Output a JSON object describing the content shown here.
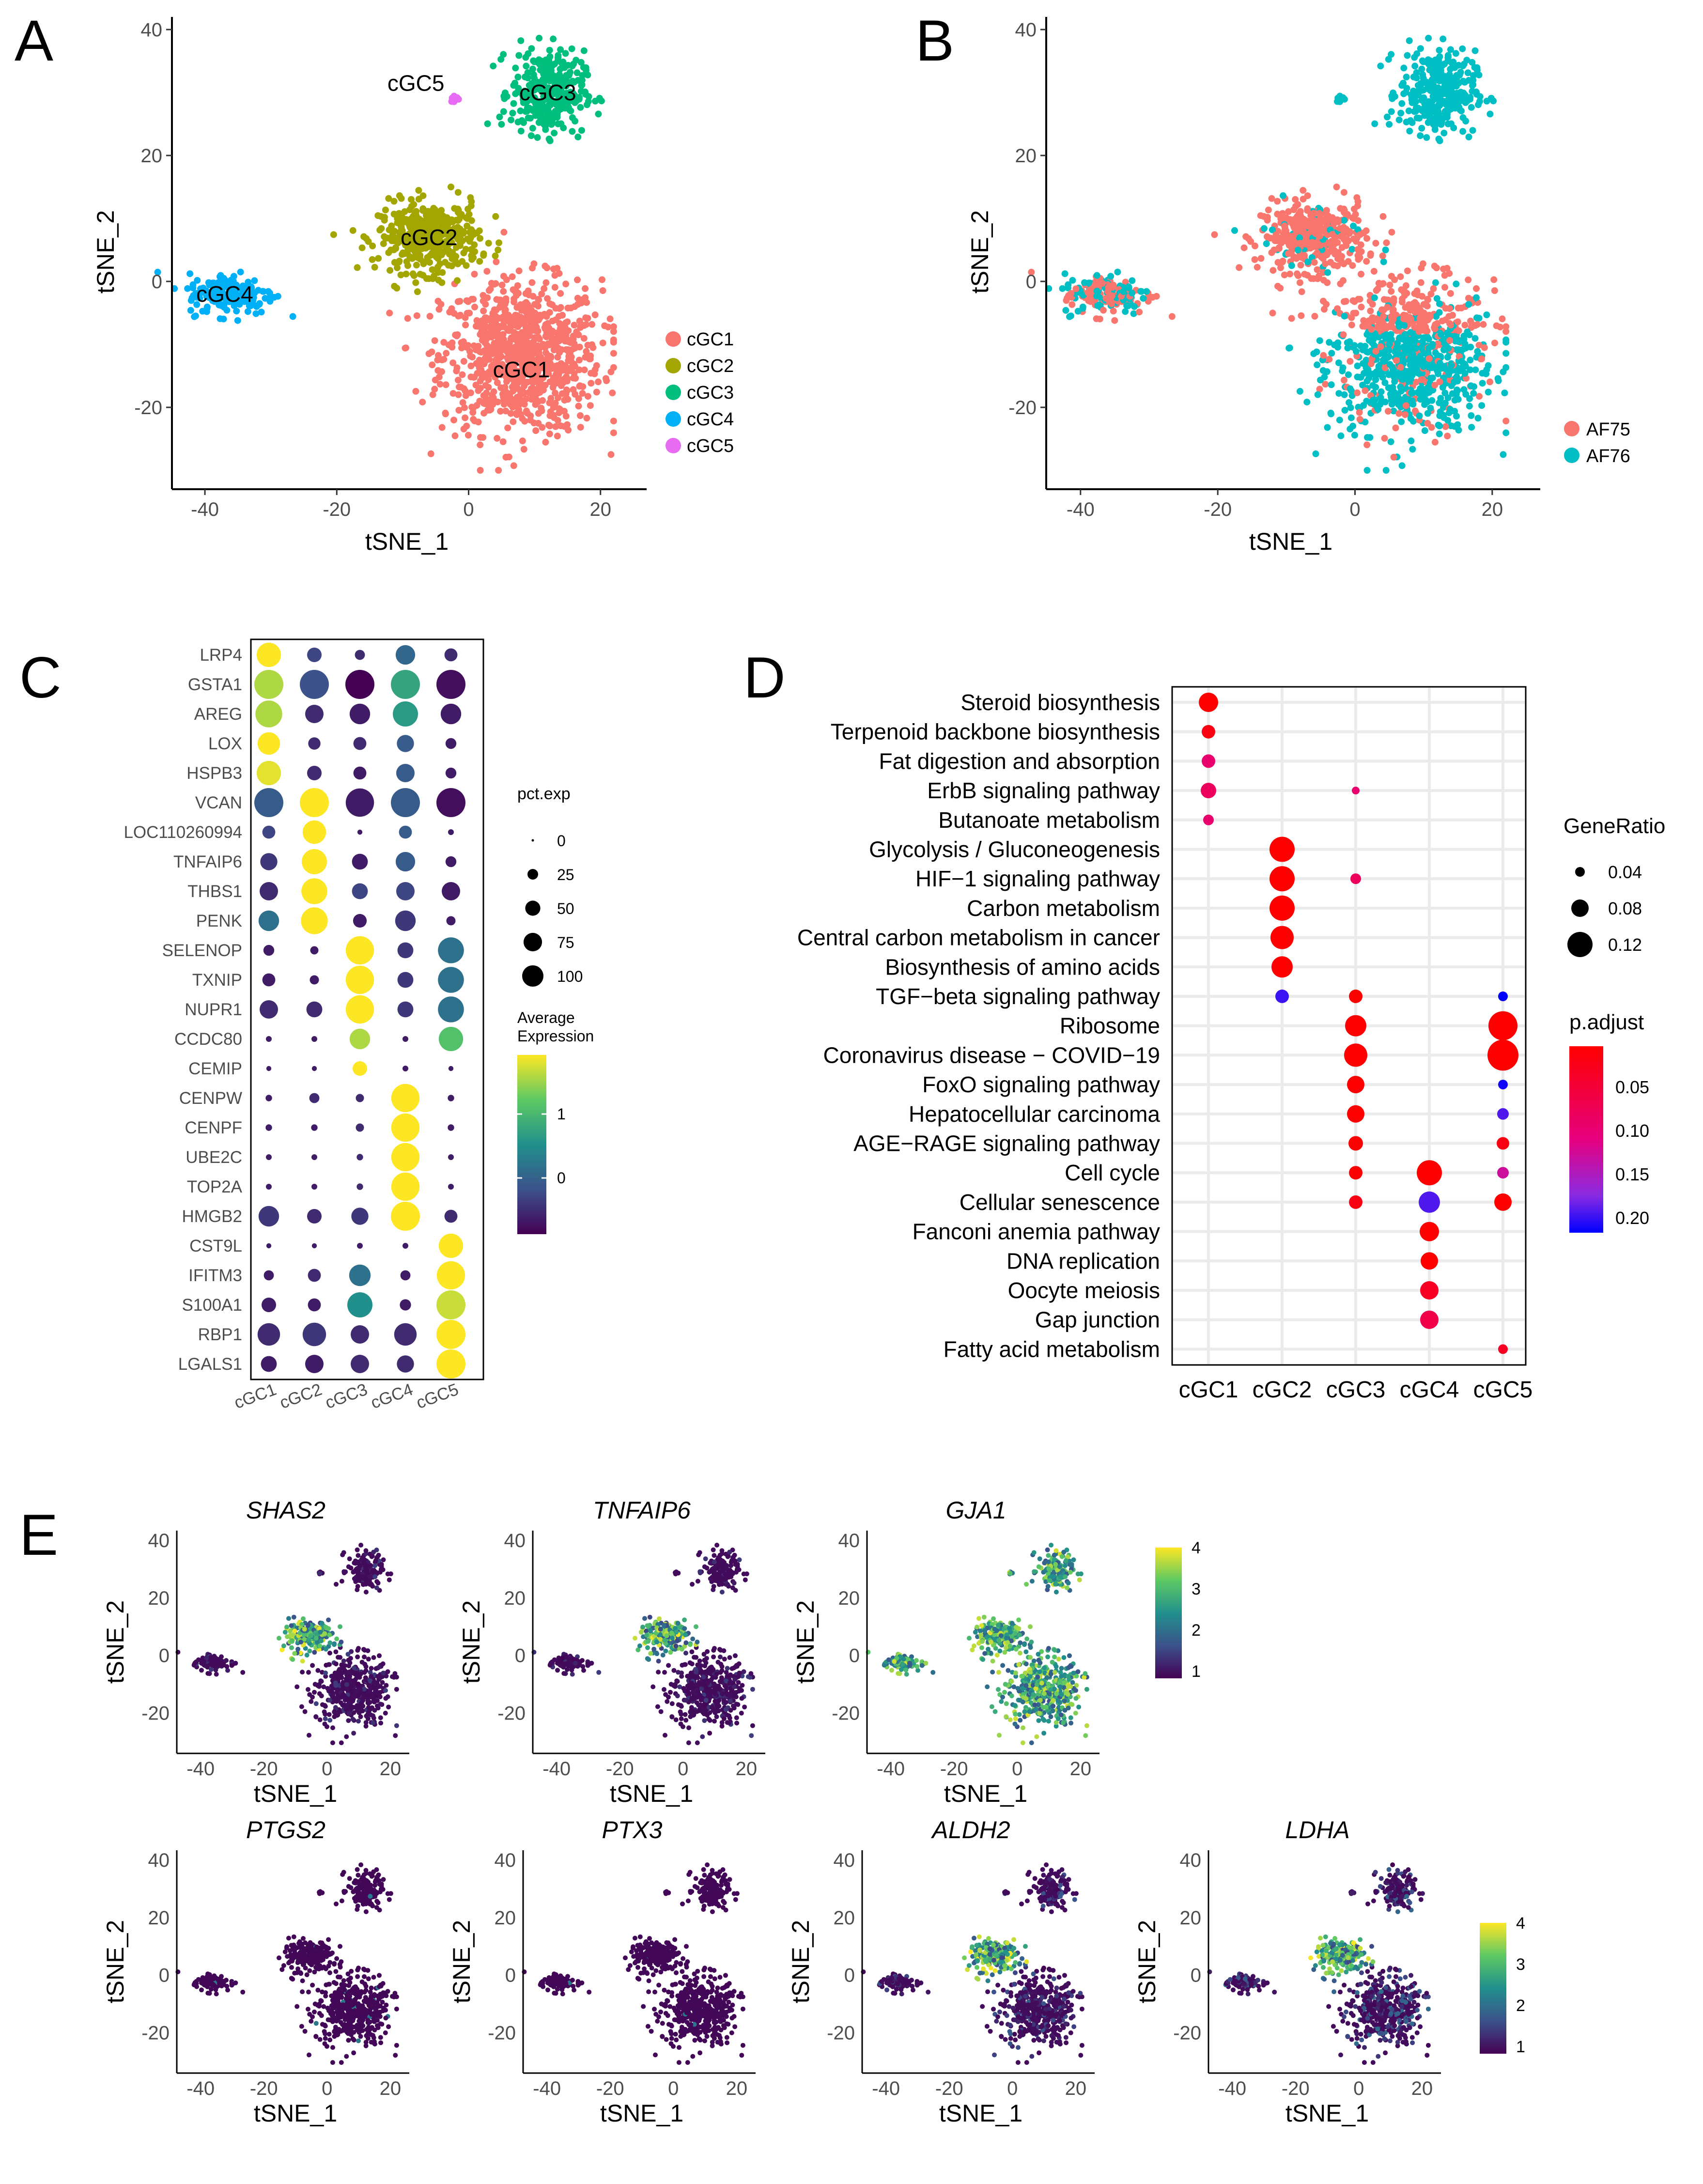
{
  "panels": {
    "A": {
      "letter": "A",
      "xlabel": "tSNE_1",
      "ylabel": "tSNE_2",
      "xlim": [
        -45,
        27
      ],
      "ylim": [
        -33,
        42
      ],
      "xticks": [
        -40,
        -20,
        0,
        20
      ],
      "yticks": [
        -20,
        0,
        20,
        40
      ],
      "legend_title": "",
      "legend": [
        {
          "name": "cGC1",
          "color": "#F8766D"
        },
        {
          "name": "cGC2",
          "color": "#A3A500"
        },
        {
          "name": "cGC3",
          "color": "#00BF7D"
        },
        {
          "name": "cGC4",
          "color": "#00B0F6"
        },
        {
          "name": "cGC5",
          "color": "#E76BF3"
        }
      ],
      "cluster_labels": [
        {
          "text": "cGC1",
          "x": 8,
          "y": -14
        },
        {
          "text": "cGC2",
          "x": -6,
          "y": 7
        },
        {
          "text": "cGC3",
          "x": 12,
          "y": 30
        },
        {
          "text": "cGC4",
          "x": -37,
          "y": -2
        },
        {
          "text": "cGC5",
          "x": -8,
          "y": 31.5
        }
      ]
    },
    "B": {
      "letter": "B",
      "xlabel": "tSNE_1",
      "ylabel": "tSNE_2",
      "xlim": [
        -45,
        27
      ],
      "ylim": [
        -33,
        42
      ],
      "xticks": [
        -40,
        -20,
        0,
        20
      ],
      "yticks": [
        -20,
        0,
        20,
        40
      ],
      "legend": [
        {
          "name": "AF75",
          "color": "#F8766D"
        },
        {
          "name": "AF76",
          "color": "#00BFC4"
        }
      ]
    },
    "C": {
      "letter": "C",
      "genes": [
        "LRP4",
        "GSTA1",
        "AREG",
        "LOX",
        "HSPB3",
        "VCAN",
        "LOC110260994",
        "TNFAIP6",
        "THBS1",
        "PENK",
        "SELENOP",
        "TXNIP",
        "NUPR1",
        "CCDC80",
        "CEMIP",
        "CENPW",
        "CENPF",
        "UBE2C",
        "TOP2A",
        "HMGB2",
        "CST9L",
        "IFITM3",
        "S100A1",
        "RBP1",
        "LGALS1"
      ],
      "clusters": [
        "cGC1",
        "cGC2",
        "cGC3",
        "cGC4",
        "cGC5"
      ],
      "pct_exp": [
        [
          70,
          25,
          12,
          45,
          20
        ],
        [
          100,
          100,
          100,
          100,
          100
        ],
        [
          85,
          40,
          50,
          75,
          50
        ],
        [
          60,
          18,
          20,
          35,
          14
        ],
        [
          70,
          25,
          20,
          40,
          14
        ],
        [
          100,
          100,
          95,
          100,
          100
        ],
        [
          20,
          65,
          3,
          20,
          4
        ],
        [
          35,
          75,
          30,
          45,
          14
        ],
        [
          40,
          80,
          30,
          40,
          40
        ],
        [
          50,
          85,
          22,
          50,
          10
        ],
        [
          14,
          8,
          95,
          30,
          80
        ],
        [
          20,
          10,
          95,
          30,
          80
        ],
        [
          40,
          30,
          95,
          30,
          80
        ],
        [
          4,
          4,
          50,
          4,
          70
        ],
        [
          3,
          3,
          25,
          4,
          3
        ],
        [
          5,
          12,
          8,
          95,
          5
        ],
        [
          5,
          5,
          8,
          95,
          5
        ],
        [
          4,
          4,
          5,
          95,
          4
        ],
        [
          4,
          4,
          5,
          95,
          4
        ],
        [
          50,
          25,
          35,
          100,
          20
        ],
        [
          3,
          3,
          4,
          4,
          70
        ],
        [
          12,
          20,
          55,
          12,
          95
        ],
        [
          25,
          20,
          75,
          15,
          100
        ],
        [
          60,
          65,
          40,
          60,
          100
        ],
        [
          30,
          40,
          40,
          35,
          100
        ]
      ],
      "avg_exp": [
        [
          1.6,
          -0.3,
          -0.5,
          0.0,
          -0.5
        ],
        [
          1.3,
          -0.2,
          -0.8,
          0.6,
          -0.7
        ],
        [
          1.3,
          -0.5,
          -0.6,
          0.5,
          -0.6
        ],
        [
          1.6,
          -0.5,
          -0.5,
          -0.1,
          -0.6
        ],
        [
          1.5,
          -0.5,
          -0.6,
          -0.1,
          -0.6
        ],
        [
          -0.1,
          1.6,
          -0.6,
          -0.1,
          -0.7
        ],
        [
          -0.3,
          1.6,
          -0.6,
          -0.1,
          -0.6
        ],
        [
          -0.4,
          1.6,
          -0.6,
          -0.1,
          -0.6
        ],
        [
          -0.5,
          1.6,
          -0.3,
          -0.3,
          -0.6
        ],
        [
          0.1,
          1.6,
          -0.6,
          -0.4,
          -0.6
        ],
        [
          -0.6,
          -0.6,
          1.6,
          -0.4,
          0.1
        ],
        [
          -0.6,
          -0.6,
          1.6,
          -0.4,
          0.1
        ],
        [
          -0.5,
          -0.5,
          1.6,
          -0.4,
          0.1
        ],
        [
          -0.6,
          -0.6,
          1.3,
          -0.6,
          0.9
        ],
        [
          -0.6,
          -0.6,
          1.6,
          -0.6,
          -0.6
        ],
        [
          -0.6,
          -0.5,
          -0.5,
          1.6,
          -0.6
        ],
        [
          -0.6,
          -0.6,
          -0.5,
          1.6,
          -0.6
        ],
        [
          -0.6,
          -0.6,
          -0.5,
          1.6,
          -0.6
        ],
        [
          -0.6,
          -0.6,
          -0.5,
          1.6,
          -0.6
        ],
        [
          -0.4,
          -0.5,
          -0.4,
          1.6,
          -0.5
        ],
        [
          -0.6,
          -0.6,
          -0.6,
          -0.6,
          1.6
        ],
        [
          -0.6,
          -0.5,
          0.1,
          -0.6,
          1.6
        ],
        [
          -0.6,
          -0.6,
          0.4,
          -0.6,
          1.4
        ],
        [
          -0.5,
          -0.4,
          -0.5,
          -0.5,
          1.6
        ],
        [
          -0.6,
          -0.6,
          -0.5,
          -0.5,
          1.6
        ]
      ],
      "size_legend_title": "pct.exp",
      "size_legend_values": [
        "0",
        "25",
        "50",
        "75",
        "100"
      ],
      "color_legend_title": [
        "Average",
        "Expression"
      ],
      "color_legend_ticks": [
        "1",
        "0"
      ]
    },
    "D": {
      "letter": "D",
      "terms": [
        "Steroid biosynthesis",
        "Terpenoid backbone biosynthesis",
        "Fat digestion and absorption",
        "ErbB signaling pathway",
        "Butanoate metabolism",
        "Glycolysis / Gluconeogenesis",
        "HIF−1 signaling pathway",
        "Carbon metabolism",
        "Central carbon metabolism in cancer",
        "Biosynthesis of amino acids",
        "TGF−beta signaling pathway",
        "Ribosome",
        "Coronavirus disease − COVID−19",
        "FoxO signaling pathway",
        "Hepatocellular carcinoma",
        "AGE−RAGE signaling pathway",
        "Cell cycle",
        "Cellular senescence",
        "Fanconi anemia pathway",
        "DNA replication",
        "Oocyte meiosis",
        "Gap junction",
        "Fatty acid metabolism"
      ],
      "clusters": [
        "cGC1",
        "cGC2",
        "cGC3",
        "cGC4",
        "cGC5"
      ],
      "points": [
        {
          "term": 0,
          "cluster": 0,
          "ratio": 0.09,
          "padj": 0.01
        },
        {
          "term": 1,
          "cluster": 0,
          "ratio": 0.06,
          "padj": 0.02
        },
        {
          "term": 2,
          "cluster": 0,
          "ratio": 0.06,
          "padj": 0.07
        },
        {
          "term": 3,
          "cluster": 0,
          "ratio": 0.07,
          "padj": 0.06
        },
        {
          "term": 4,
          "cluster": 0,
          "ratio": 0.045,
          "padj": 0.07
        },
        {
          "term": 3,
          "cluster": 2,
          "ratio": 0.03,
          "padj": 0.07
        },
        {
          "term": 5,
          "cluster": 1,
          "ratio": 0.12,
          "padj": 0.01
        },
        {
          "term": 6,
          "cluster": 1,
          "ratio": 0.12,
          "padj": 0.01
        },
        {
          "term": 6,
          "cluster": 2,
          "ratio": 0.045,
          "padj": 0.06
        },
        {
          "term": 7,
          "cluster": 1,
          "ratio": 0.12,
          "padj": 0.01
        },
        {
          "term": 8,
          "cluster": 1,
          "ratio": 0.11,
          "padj": 0.01
        },
        {
          "term": 9,
          "cluster": 1,
          "ratio": 0.1,
          "padj": 0.01
        },
        {
          "term": 10,
          "cluster": 1,
          "ratio": 0.06,
          "padj": 0.19
        },
        {
          "term": 10,
          "cluster": 2,
          "ratio": 0.06,
          "padj": 0.01
        },
        {
          "term": 10,
          "cluster": 4,
          "ratio": 0.04,
          "padj": 0.22
        },
        {
          "term": 11,
          "cluster": 2,
          "ratio": 0.1,
          "padj": 0.01
        },
        {
          "term": 11,
          "cluster": 4,
          "ratio": 0.14,
          "padj": 0.01
        },
        {
          "term": 12,
          "cluster": 2,
          "ratio": 0.11,
          "padj": 0.01
        },
        {
          "term": 12,
          "cluster": 4,
          "ratio": 0.15,
          "padj": 0.01
        },
        {
          "term": 13,
          "cluster": 2,
          "ratio": 0.08,
          "padj": 0.01
        },
        {
          "term": 13,
          "cluster": 4,
          "ratio": 0.04,
          "padj": 0.21
        },
        {
          "term": 14,
          "cluster": 2,
          "ratio": 0.08,
          "padj": 0.01
        },
        {
          "term": 14,
          "cluster": 4,
          "ratio": 0.05,
          "padj": 0.18
        },
        {
          "term": 15,
          "cluster": 2,
          "ratio": 0.065,
          "padj": 0.01
        },
        {
          "term": 15,
          "cluster": 4,
          "ratio": 0.055,
          "padj": 0.02
        },
        {
          "term": 16,
          "cluster": 2,
          "ratio": 0.06,
          "padj": 0.01
        },
        {
          "term": 16,
          "cluster": 3,
          "ratio": 0.12,
          "padj": 0.01
        },
        {
          "term": 16,
          "cluster": 4,
          "ratio": 0.05,
          "padj": 0.1
        },
        {
          "term": 17,
          "cluster": 2,
          "ratio": 0.06,
          "padj": 0.02
        },
        {
          "term": 17,
          "cluster": 3,
          "ratio": 0.1,
          "padj": 0.18
        },
        {
          "term": 17,
          "cluster": 4,
          "ratio": 0.08,
          "padj": 0.01
        },
        {
          "term": 18,
          "cluster": 3,
          "ratio": 0.09,
          "padj": 0.01
        },
        {
          "term": 19,
          "cluster": 3,
          "ratio": 0.08,
          "padj": 0.01
        },
        {
          "term": 20,
          "cluster": 3,
          "ratio": 0.085,
          "padj": 0.03
        },
        {
          "term": 21,
          "cluster": 3,
          "ratio": 0.085,
          "padj": 0.05
        },
        {
          "term": 22,
          "cluster": 4,
          "ratio": 0.04,
          "padj": 0.03
        }
      ],
      "size_legend_title": "GeneRatio",
      "size_legend_values": [
        0.04,
        0.08,
        0.12
      ],
      "size_legend_labels": [
        "0.04",
        "0.08",
        "0.12"
      ],
      "color_legend_title": "p.adjust",
      "color_legend_ticks": [
        "0.05",
        "0.10",
        "0.15",
        "0.20"
      ]
    },
    "E": {
      "letter": "E",
      "xlabel": "tSNE_1",
      "ylabel": "tSNE_2",
      "xticks": [
        -40,
        -20,
        0,
        20
      ],
      "yticks": [
        -20,
        0,
        20,
        40
      ],
      "genes": [
        {
          "name": "SHAS2",
          "level": 0.25,
          "hot": "cGC2"
        },
        {
          "name": "TNFAIP6",
          "level": 0.25,
          "hot": "cGC2"
        },
        {
          "name": "GJA1",
          "level": 0.7,
          "hot": "all"
        },
        {
          "name": "PTGS2",
          "level": 0.05,
          "hot": "none"
        },
        {
          "name": "PTX3",
          "level": 0.05,
          "hot": "none"
        },
        {
          "name": "ALDH2",
          "level": 0.35,
          "hot": "cGC2"
        },
        {
          "name": "LDHA",
          "level": 0.45,
          "hot": "cGC2"
        }
      ],
      "color_legend_ticks": [
        "4",
        "3",
        "2",
        "1"
      ]
    }
  },
  "colors": {
    "cGC1": "#F8766D",
    "cGC2": "#A3A500",
    "cGC3": "#00BF7D",
    "cGC4": "#00B0F6",
    "cGC5": "#E76BF3",
    "AF75": "#F8766D",
    "AF76": "#00BFC4"
  }
}
